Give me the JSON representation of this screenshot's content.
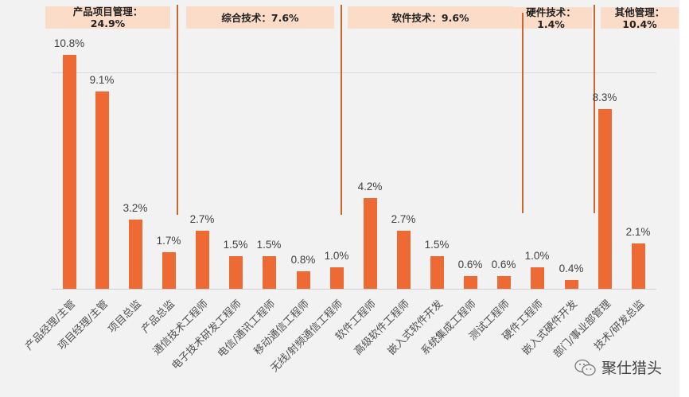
{
  "chart_data": {
    "type": "bar",
    "title": "",
    "xlabel": "",
    "ylabel": "",
    "ylim": [
      0,
      11
    ],
    "grid": true,
    "bar_color": "#ed6a35",
    "categories": [
      "产品经理/主管",
      "项目经理/主管",
      "项目总监",
      "产品总监",
      "通信技术工程师",
      "电子技术研发工程师",
      "电信/通讯工程师",
      "移动通信工程师",
      "无线/射频通信工程师",
      "软件工程师",
      "高级软件工程师",
      "嵌入式软件开发",
      "系统集成工程师",
      "测试工程师",
      "硬件工程师",
      "嵌入式硬件开发",
      "部门/事业部管理",
      "技术/研发总监"
    ],
    "values": [
      10.8,
      9.1,
      3.2,
      1.7,
      2.7,
      1.5,
      1.5,
      0.8,
      1.0,
      4.2,
      2.7,
      1.5,
      0.6,
      0.6,
      1.0,
      0.4,
      8.3,
      2.1
    ],
    "value_labels": [
      "10.8%",
      "9.1%",
      "3.2%",
      "1.7%",
      "2.7%",
      "1.5%",
      "1.5%",
      "0.8%",
      "1.0%",
      "4.2%",
      "2.7%",
      "1.5%",
      "0.6%",
      "0.6%",
      "1.0%",
      "0.4%",
      "8.3%",
      "2.1%"
    ],
    "groups": [
      {
        "name": "产品项目管理",
        "label": "产品项目管理：\n24.9%",
        "total": 24.9,
        "range": [
          0,
          3
        ]
      },
      {
        "name": "综合技术",
        "label": "综合技术：7.6%",
        "total": 7.6,
        "range": [
          4,
          8
        ]
      },
      {
        "name": "软件技术",
        "label": "软件技术：9.6%",
        "total": 9.6,
        "range": [
          9,
          13
        ]
      },
      {
        "name": "硬件技术",
        "label": "硬件技术：\n1.4%",
        "total": 1.4,
        "range": [
          14,
          15
        ]
      },
      {
        "name": "其他管理",
        "label": "其他管理：\n10.4%",
        "total": 10.4,
        "range": [
          16,
          17
        ]
      }
    ]
  },
  "watermark": {
    "icon": "wechat-icon",
    "text": "聚仕猎头"
  }
}
